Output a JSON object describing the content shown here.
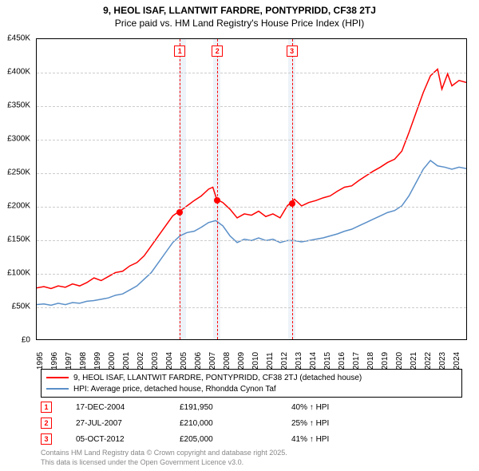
{
  "title": {
    "line1": "9, HEOL ISAF, LLANTWIT FARDRE, PONTYPRIDD, CF38 2TJ",
    "line2": "Price paid vs. HM Land Registry's House Price Index (HPI)"
  },
  "chart": {
    "type": "line",
    "ylim": [
      0,
      450000
    ],
    "ytick_step": 50000,
    "y_prefix": "£",
    "y_suffix": "K",
    "y_divisor": 1000,
    "xlim": [
      1995,
      2025
    ],
    "xticks": [
      1995,
      1996,
      1997,
      1998,
      1999,
      2000,
      2001,
      2002,
      2003,
      2004,
      2005,
      2006,
      2007,
      2008,
      2009,
      2010,
      2011,
      2012,
      2013,
      2014,
      2015,
      2016,
      2017,
      2018,
      2019,
      2020,
      2021,
      2022,
      2023,
      2024
    ],
    "grid_color": "#cccccc",
    "background_color": "#ffffff",
    "label_fontsize": 10,
    "line_width": 1.5,
    "shaded_bands": [
      {
        "x_start": 2004.9,
        "x_end": 2005.4,
        "color": "#e6eef7"
      },
      {
        "x_start": 2007.3,
        "x_end": 2007.8,
        "color": "#e6eef7"
      },
      {
        "x_start": 2012.5,
        "x_end": 2013.0,
        "color": "#e6eef7"
      }
    ],
    "series": [
      {
        "id": "property",
        "label": "9, HEOL ISAF, LLANTWIT FARDRE, PONTYPRIDD, CF38 2TJ (detached house)",
        "color": "#ff0000",
        "data": [
          [
            1995,
            77000
          ],
          [
            1995.5,
            79000
          ],
          [
            1996,
            76000
          ],
          [
            1996.5,
            80000
          ],
          [
            1997,
            78000
          ],
          [
            1997.5,
            83000
          ],
          [
            1998,
            80000
          ],
          [
            1998.5,
            85000
          ],
          [
            1999,
            92000
          ],
          [
            1999.5,
            88000
          ],
          [
            2000,
            94000
          ],
          [
            2000.5,
            100000
          ],
          [
            2001,
            102000
          ],
          [
            2001.5,
            110000
          ],
          [
            2002,
            115000
          ],
          [
            2002.5,
            125000
          ],
          [
            2003,
            140000
          ],
          [
            2003.5,
            155000
          ],
          [
            2004,
            170000
          ],
          [
            2004.5,
            185000
          ],
          [
            2004.96,
            191950
          ],
          [
            2005,
            192000
          ],
          [
            2005.5,
            200000
          ],
          [
            2006,
            208000
          ],
          [
            2006.5,
            215000
          ],
          [
            2007,
            225000
          ],
          [
            2007.3,
            228000
          ],
          [
            2007.57,
            210000
          ],
          [
            2008,
            205000
          ],
          [
            2008.5,
            195000
          ],
          [
            2009,
            182000
          ],
          [
            2009.5,
            188000
          ],
          [
            2010,
            186000
          ],
          [
            2010.5,
            192000
          ],
          [
            2011,
            184000
          ],
          [
            2011.5,
            188000
          ],
          [
            2012,
            182000
          ],
          [
            2012.5,
            200000
          ],
          [
            2012.76,
            205000
          ],
          [
            2013,
            210000
          ],
          [
            2013.5,
            200000
          ],
          [
            2014,
            205000
          ],
          [
            2014.5,
            208000
          ],
          [
            2015,
            212000
          ],
          [
            2015.5,
            215000
          ],
          [
            2016,
            222000
          ],
          [
            2016.5,
            228000
          ],
          [
            2017,
            230000
          ],
          [
            2017.5,
            238000
          ],
          [
            2018,
            245000
          ],
          [
            2018.5,
            252000
          ],
          [
            2019,
            258000
          ],
          [
            2019.5,
            265000
          ],
          [
            2020,
            270000
          ],
          [
            2020.5,
            282000
          ],
          [
            2021,
            310000
          ],
          [
            2021.5,
            340000
          ],
          [
            2022,
            370000
          ],
          [
            2022.5,
            395000
          ],
          [
            2023,
            405000
          ],
          [
            2023.3,
            375000
          ],
          [
            2023.7,
            398000
          ],
          [
            2024,
            380000
          ],
          [
            2024.5,
            388000
          ],
          [
            2025,
            385000
          ]
        ]
      },
      {
        "id": "hpi",
        "label": "HPI: Average price, detached house, Rhondda Cynon Taf",
        "color": "#5a8fc8",
        "data": [
          [
            1995,
            52000
          ],
          [
            1995.5,
            53000
          ],
          [
            1996,
            51000
          ],
          [
            1996.5,
            54000
          ],
          [
            1997,
            52000
          ],
          [
            1997.5,
            55000
          ],
          [
            1998,
            54000
          ],
          [
            1998.5,
            57000
          ],
          [
            1999,
            58000
          ],
          [
            1999.5,
            60000
          ],
          [
            2000,
            62000
          ],
          [
            2000.5,
            66000
          ],
          [
            2001,
            68000
          ],
          [
            2001.5,
            74000
          ],
          [
            2002,
            80000
          ],
          [
            2002.5,
            90000
          ],
          [
            2003,
            100000
          ],
          [
            2003.5,
            115000
          ],
          [
            2004,
            130000
          ],
          [
            2004.5,
            145000
          ],
          [
            2005,
            155000
          ],
          [
            2005.5,
            160000
          ],
          [
            2006,
            162000
          ],
          [
            2006.5,
            168000
          ],
          [
            2007,
            175000
          ],
          [
            2007.5,
            178000
          ],
          [
            2008,
            170000
          ],
          [
            2008.5,
            155000
          ],
          [
            2009,
            145000
          ],
          [
            2009.5,
            150000
          ],
          [
            2010,
            148000
          ],
          [
            2010.5,
            152000
          ],
          [
            2011,
            148000
          ],
          [
            2011.5,
            150000
          ],
          [
            2012,
            145000
          ],
          [
            2012.5,
            148000
          ],
          [
            2013,
            148000
          ],
          [
            2013.5,
            146000
          ],
          [
            2014,
            148000
          ],
          [
            2014.5,
            150000
          ],
          [
            2015,
            152000
          ],
          [
            2015.5,
            155000
          ],
          [
            2016,
            158000
          ],
          [
            2016.5,
            162000
          ],
          [
            2017,
            165000
          ],
          [
            2017.5,
            170000
          ],
          [
            2018,
            175000
          ],
          [
            2018.5,
            180000
          ],
          [
            2019,
            185000
          ],
          [
            2019.5,
            190000
          ],
          [
            2020,
            193000
          ],
          [
            2020.5,
            200000
          ],
          [
            2021,
            215000
          ],
          [
            2021.5,
            235000
          ],
          [
            2022,
            255000
          ],
          [
            2022.5,
            268000
          ],
          [
            2023,
            260000
          ],
          [
            2023.5,
            258000
          ],
          [
            2024,
            255000
          ],
          [
            2024.5,
            258000
          ],
          [
            2025,
            256000
          ]
        ]
      }
    ],
    "event_markers": [
      {
        "n": "1",
        "x": 2004.96,
        "y": 191950,
        "line_color": "#ff0000",
        "box_top_offset": 8
      },
      {
        "n": "2",
        "x": 2007.57,
        "y": 210000,
        "line_color": "#ff0000",
        "box_top_offset": 8
      },
      {
        "n": "3",
        "x": 2012.76,
        "y": 205000,
        "line_color": "#ff0000",
        "box_top_offset": 8
      }
    ]
  },
  "legend": {
    "items": [
      {
        "color": "#ff0000",
        "label": "9, HEOL ISAF, LLANTWIT FARDRE, PONTYPRIDD, CF38 2TJ (detached house)"
      },
      {
        "color": "#5a8fc8",
        "label": "HPI: Average price, detached house, Rhondda Cynon Taf"
      }
    ]
  },
  "events_table": [
    {
      "n": "1",
      "date": "17-DEC-2004",
      "price": "£191,950",
      "pct": "40% ↑ HPI"
    },
    {
      "n": "2",
      "date": "27-JUL-2007",
      "price": "£210,000",
      "pct": "25% ↑ HPI"
    },
    {
      "n": "3",
      "date": "05-OCT-2012",
      "price": "£205,000",
      "pct": "41% ↑ HPI"
    }
  ],
  "attribution": {
    "line1": "Contains HM Land Registry data © Crown copyright and database right 2025.",
    "line2": "This data is licensed under the Open Government Licence v3.0."
  }
}
